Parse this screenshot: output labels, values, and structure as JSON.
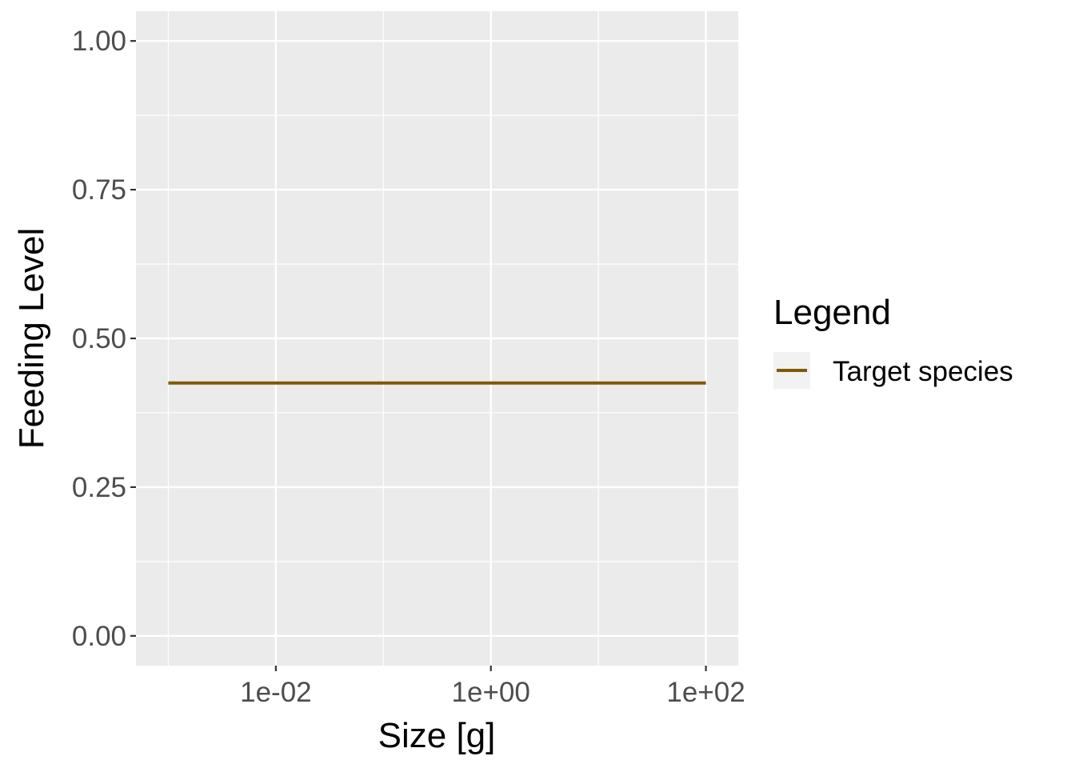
{
  "chart_data": {
    "type": "line",
    "xlabel": "Size [g]",
    "ylabel": "Feeding Level",
    "x_scale": "log10",
    "xlim": [
      0.0005,
      200
    ],
    "ylim": [
      -0.05,
      1.05
    ],
    "x_ticks": [
      {
        "value": 0.01,
        "label": "1e-02"
      },
      {
        "value": 1,
        "label": "1e+00"
      },
      {
        "value": 100,
        "label": "1e+02"
      }
    ],
    "x_minor_ticks": [
      0.001,
      0.1,
      10
    ],
    "y_ticks": [
      {
        "value": 0.0,
        "label": "0.00"
      },
      {
        "value": 0.25,
        "label": "0.25"
      },
      {
        "value": 0.5,
        "label": "0.50"
      },
      {
        "value": 0.75,
        "label": "0.75"
      },
      {
        "value": 1.0,
        "label": "1.00"
      }
    ],
    "y_minor_ticks": [
      0.125,
      0.375,
      0.625,
      0.875
    ],
    "grid": true,
    "panel_background": "#ebebeb",
    "grid_color": "#ffffff",
    "legend_title": "Legend",
    "legend_position": "right",
    "series": [
      {
        "name": "Target species",
        "color": "#7f5a00",
        "x": [
          0.001,
          0.01,
          0.1,
          1,
          10,
          100
        ],
        "y": [
          0.425,
          0.425,
          0.425,
          0.425,
          0.425,
          0.425
        ]
      }
    ]
  }
}
